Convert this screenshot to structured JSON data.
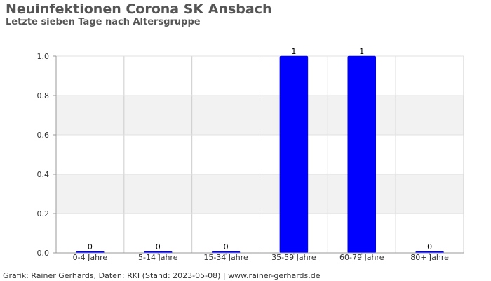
{
  "header": {
    "title": "Neuinfektionen Corona SK Ansbach",
    "subtitle": "Letzte sieben Tage nach Altersgruppe"
  },
  "footer": {
    "credit": "Grafik: Rainer Gerhards, Daten: RKI (Stand: 2023-05-08) | www.rainer-gerhards.de"
  },
  "chart_data": {
    "type": "bar",
    "title": "Neuinfektionen Corona SK Ansbach",
    "subtitle": "Letzte sieben Tage nach Altersgruppe",
    "xlabel": "",
    "ylabel": "",
    "categories": [
      "0-4 Jahre",
      "5-14 Jahre",
      "15-34 Jahre",
      "35-59 Jahre",
      "60-79 Jahre",
      "80+ Jahre"
    ],
    "values": [
      0,
      0,
      0,
      1,
      1,
      0
    ],
    "value_labels": [
      "0",
      "0",
      "0",
      "1",
      "1",
      "0"
    ],
    "ylim": [
      0,
      1.0
    ],
    "yticks": [
      0.0,
      0.2,
      0.4,
      0.6,
      0.8,
      1.0
    ],
    "ytick_labels": [
      "0.0",
      "0.2",
      "0.4",
      "0.6",
      "0.8",
      "1.0"
    ],
    "grid": true,
    "bar_color": "#0000ff",
    "band_color": "#f2f2f2"
  }
}
